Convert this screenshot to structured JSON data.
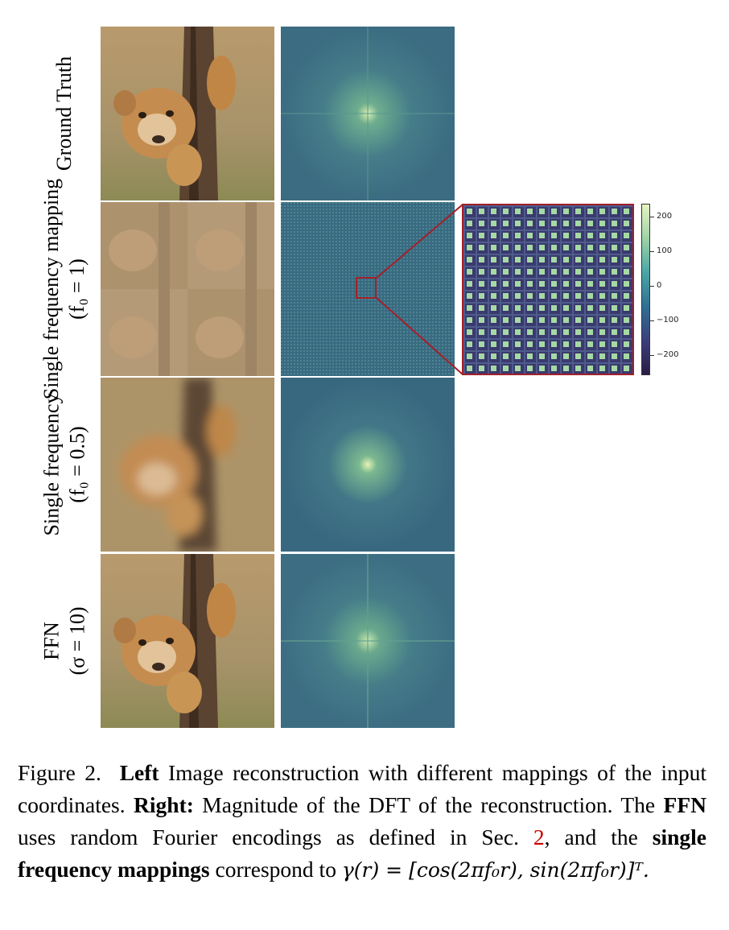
{
  "rows": [
    {
      "label_lines": [
        "Ground Truth"
      ]
    },
    {
      "label_lines": [
        "Single frequency mapping",
        "(f₀ = 1)"
      ]
    },
    {
      "label_lines": [
        "Single frequency",
        "(f₀ = 0.5)"
      ]
    },
    {
      "label_lines": [
        "FFN",
        "(σ = 10)"
      ]
    }
  ],
  "colorbar": {
    "ticks": [
      "200",
      "100",
      "0",
      "−100",
      "−200"
    ],
    "colors": [
      "#e7f3c3",
      "#9fd3a6",
      "#4aa6a6",
      "#2f7193",
      "#3c3f7d",
      "#2a1c45"
    ]
  },
  "caption": {
    "fig_label": "Figure 2.",
    "left_bold": "Left",
    "t1": " Image reconstruction with different mappings of the input coordinates. ",
    "right_bold": "Right:",
    "t2": " Magnitude of the DFT of the reconstruction. The ",
    "ffn_bold": "FFN",
    "t3": " uses random Fourier encodings as defined in Sec. ",
    "sec_ref": "2",
    "t4": ", and the ",
    "sfm_bold": "single frequency mappings",
    "t5": " correspond to ",
    "formula": "γ(r) = [cos(2πf₀r), sin(2πf₀r)]ᵀ."
  },
  "colors": {
    "highlight_red": "#a3202a",
    "dft_background": "#3d6f84"
  }
}
